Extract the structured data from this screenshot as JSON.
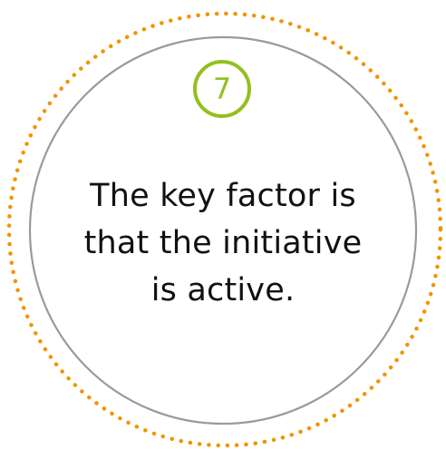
{
  "badge": {
    "number": "7",
    "color": "#93c01f"
  },
  "message": {
    "lines": [
      "The key factor is",
      "that the initiative",
      "is active."
    ]
  },
  "colors": {
    "outer_dotted_ring": "#f29400",
    "inner_ring": "#9a9a9a",
    "text": "#111111",
    "background": "#ffffff"
  }
}
